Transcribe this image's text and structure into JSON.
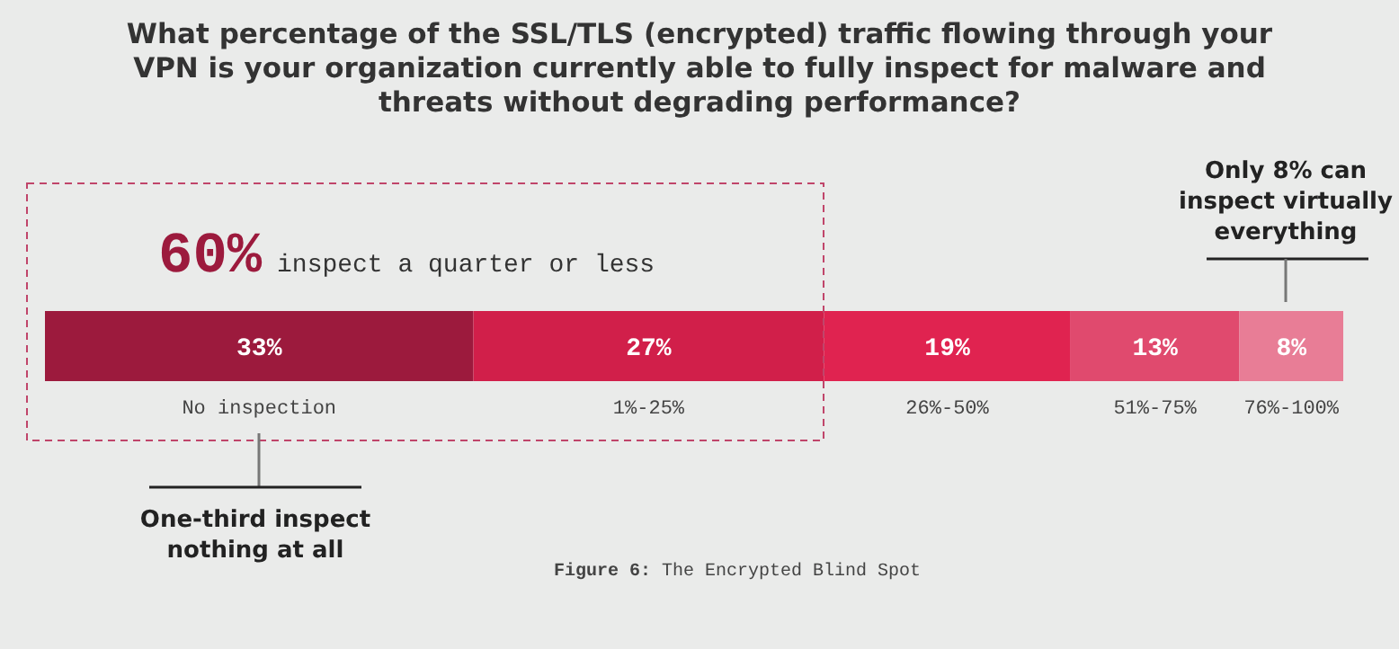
{
  "chart_data": {
    "type": "bar",
    "orientation": "horizontal",
    "stacked": true,
    "title": "What percentage of the SSL/TLS (encrypted) traffic flowing through your VPN is your organization currently able to fully inspect for malware and threats without degrading performance?",
    "categories": [
      null
    ],
    "legend": false,
    "series": [
      {
        "name": "No inspection",
        "color": "#9c1a3d",
        "values": [
          33
        ],
        "value_labels": [
          "33%"
        ]
      },
      {
        "name": "1%-25%",
        "color": "#d11f4a",
        "values": [
          27
        ],
        "value_labels": [
          "27%"
        ]
      },
      {
        "name": "26%-50%",
        "color": "#e02350",
        "values": [
          19
        ],
        "value_labels": [
          "19%"
        ]
      },
      {
        "name": "51%-75%",
        "color": "#e04a6e",
        "values": [
          13
        ],
        "value_labels": [
          "13%"
        ]
      },
      {
        "name": "76%-100%",
        "color": "#e87d96",
        "values": [
          8
        ],
        "value_labels": [
          "8%"
        ]
      }
    ],
    "annotations": [
      "60% inspect a quarter or less",
      "Only 8% can inspect virtually everything",
      "One-third inspect nothing at all",
      "Figure 6: The Encrypted Blind Spot"
    ]
  }
}
